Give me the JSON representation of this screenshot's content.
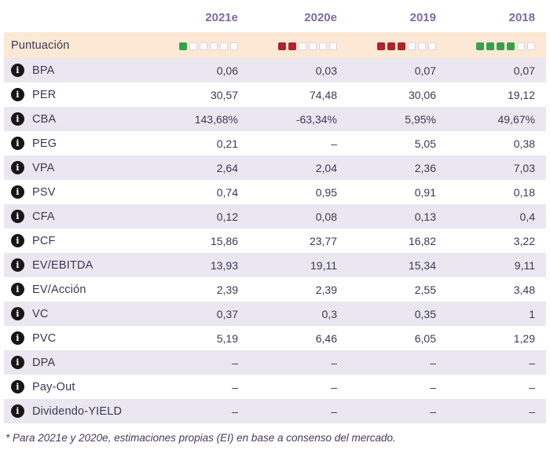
{
  "table": {
    "columns": [
      "2021e",
      "2020e",
      "2019",
      "2018"
    ],
    "score_row": {
      "label": "Puntuación",
      "scores": [
        {
          "color": "green",
          "filled": 1,
          "total": 6
        },
        {
          "color": "red",
          "filled": 2,
          "total": 6
        },
        {
          "color": "red",
          "filled": 3,
          "total": 6
        },
        {
          "color": "green",
          "filled": 4,
          "total": 6
        }
      ]
    },
    "rows": [
      {
        "label": "BPA",
        "values": [
          "0,06",
          "0,03",
          "0,07",
          "0,07"
        ]
      },
      {
        "label": "PER",
        "values": [
          "30,57",
          "74,48",
          "30,06",
          "19,12"
        ]
      },
      {
        "label": "CBA",
        "values": [
          "143,68%",
          "-63,34%",
          "5,95%",
          "49,67%"
        ]
      },
      {
        "label": "PEG",
        "values": [
          "0,21",
          "–",
          "5,05",
          "0,38"
        ]
      },
      {
        "label": "VPA",
        "values": [
          "2,64",
          "2,04",
          "2,36",
          "7,03"
        ]
      },
      {
        "label": "PSV",
        "values": [
          "0,74",
          "0,95",
          "0,91",
          "0,18"
        ]
      },
      {
        "label": "CFA",
        "values": [
          "0,12",
          "0,08",
          "0,13",
          "0,4"
        ]
      },
      {
        "label": "PCF",
        "values": [
          "15,86",
          "23,77",
          "16,82",
          "3,22"
        ]
      },
      {
        "label": "EV/EBITDA",
        "values": [
          "13,93",
          "19,11",
          "15,34",
          "9,11"
        ]
      },
      {
        "label": "EV/Acción",
        "values": [
          "2,39",
          "2,39",
          "2,55",
          "3,48"
        ]
      },
      {
        "label": "VC",
        "values": [
          "0,37",
          "0,3",
          "0,35",
          "1"
        ]
      },
      {
        "label": "PVC",
        "values": [
          "5,19",
          "6,46",
          "6,05",
          "1,29"
        ]
      },
      {
        "label": "DPA",
        "values": [
          "–",
          "–",
          "–",
          "–"
        ]
      },
      {
        "label": "Pay-Out",
        "values": [
          "–",
          "–",
          "–",
          "–"
        ]
      },
      {
        "label": "Dividendo-YIELD",
        "values": [
          "–",
          "–",
          "–",
          "–"
        ]
      }
    ],
    "footnote": "* Para 2021e y 2020e, estimaciones propias (EI) en base a consenso del mercado."
  },
  "icons": {
    "info": "i"
  },
  "colors": {
    "green": "#35a14e",
    "red": "#ac242c",
    "score_row_bg": "#fce8d5",
    "stripe_bg": "#eae7f1",
    "header_text": "#7d6ba0"
  }
}
